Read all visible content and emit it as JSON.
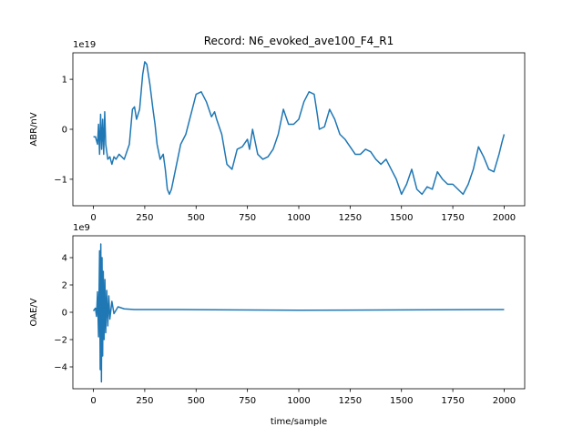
{
  "chart_data": [
    {
      "type": "line",
      "title": "Record: N6_evoked_ave100_F4_R1",
      "y_label": "ABR/nV",
      "y_offset_text": "1e19",
      "x": [
        0,
        10,
        20,
        25,
        30,
        35,
        40,
        45,
        50,
        55,
        60,
        70,
        80,
        90,
        100,
        110,
        125,
        150,
        175,
        190,
        200,
        210,
        225,
        240,
        250,
        260,
        275,
        290,
        300,
        310,
        325,
        340,
        350,
        360,
        370,
        380,
        400,
        425,
        450,
        475,
        500,
        525,
        550,
        575,
        590,
        600,
        625,
        650,
        675,
        700,
        725,
        750,
        760,
        775,
        790,
        800,
        825,
        850,
        875,
        900,
        925,
        950,
        975,
        1000,
        1025,
        1050,
        1075,
        1090,
        1100,
        1125,
        1150,
        1175,
        1200,
        1225,
        1250,
        1275,
        1300,
        1325,
        1350,
        1375,
        1400,
        1425,
        1450,
        1475,
        1500,
        1525,
        1550,
        1575,
        1600,
        1625,
        1650,
        1675,
        1700,
        1725,
        1750,
        1775,
        1800,
        1825,
        1850,
        1875,
        1900,
        1925,
        1950,
        1975,
        1990,
        2000
      ],
      "series": [
        {
          "color": "#1f77b4",
          "values": [
            -0.15,
            -0.15,
            -0.3,
            0.1,
            -0.5,
            0.3,
            -0.4,
            0.2,
            -0.5,
            0.35,
            -0.3,
            -0.6,
            -0.55,
            -0.7,
            -0.55,
            -0.6,
            -0.5,
            -0.6,
            -0.3,
            0.4,
            0.45,
            0.2,
            0.4,
            1.1,
            1.35,
            1.3,
            0.9,
            0.4,
            0.1,
            -0.3,
            -0.6,
            -0.5,
            -0.8,
            -1.2,
            -1.3,
            -1.2,
            -0.8,
            -0.3,
            -0.1,
            0.3,
            0.7,
            0.75,
            0.55,
            0.25,
            0.35,
            0.2,
            -0.1,
            -0.7,
            -0.8,
            -0.4,
            -0.35,
            -0.2,
            -0.4,
            0,
            -0.3,
            -0.5,
            -0.6,
            -0.55,
            -0.4,
            -0.1,
            0.4,
            0.1,
            0.1,
            0.2,
            0.55,
            0.75,
            0.7,
            0.3,
            0,
            0.05,
            0.4,
            0.2,
            -0.1,
            -0.2,
            -0.35,
            -0.5,
            -0.5,
            -0.4,
            -0.45,
            -0.6,
            -0.7,
            -0.6,
            -0.8,
            -1.0,
            -1.3,
            -1.1,
            -0.8,
            -1.2,
            -1.3,
            -1.15,
            -1.2,
            -0.85,
            -1.0,
            -1.1,
            -1.1,
            -1.2,
            -1.3,
            -1.1,
            -0.8,
            -0.35,
            -0.55,
            -0.8,
            -0.85,
            -0.5,
            -0.25,
            -0.1
          ]
        }
      ],
      "xlim": [
        -100,
        2100
      ],
      "xticks": [
        0,
        250,
        500,
        750,
        1000,
        1250,
        1500,
        1750,
        2000
      ],
      "ylim": [
        -1.53,
        1.53
      ],
      "yticks": [
        {
          "value": -1,
          "label": "−1"
        },
        0,
        1
      ]
    },
    {
      "type": "line",
      "x_label": "time/sample",
      "y_label": "OAE/V",
      "y_offset_text": "1e9",
      "x": [
        0,
        10,
        15,
        20,
        25,
        30,
        33,
        36,
        39,
        42,
        45,
        48,
        52,
        56,
        60,
        65,
        70,
        75,
        80,
        90,
        100,
        120,
        150,
        200,
        400,
        1000,
        2000
      ],
      "series": [
        {
          "color": "#1f77b4",
          "values": [
            0.1,
            0.3,
            -0.3,
            1.5,
            -1.8,
            4.5,
            -4.2,
            5.0,
            -5.1,
            4.0,
            -3.2,
            3.0,
            -2.0,
            2.4,
            -1.5,
            1.6,
            -1.0,
            1.2,
            -0.5,
            0.8,
            -0.1,
            0.4,
            0.25,
            0.2,
            0.2,
            0.15,
            0.2
          ]
        }
      ],
      "xlim": [
        -100,
        2100
      ],
      "xticks": [
        0,
        250,
        500,
        750,
        1000,
        1250,
        1500,
        1750,
        2000
      ],
      "ylim": [
        -5.6,
        5.6
      ],
      "yticks": [
        {
          "value": -4,
          "label": "−4"
        },
        {
          "value": -2,
          "label": "−2"
        },
        0,
        2,
        4
      ]
    }
  ]
}
